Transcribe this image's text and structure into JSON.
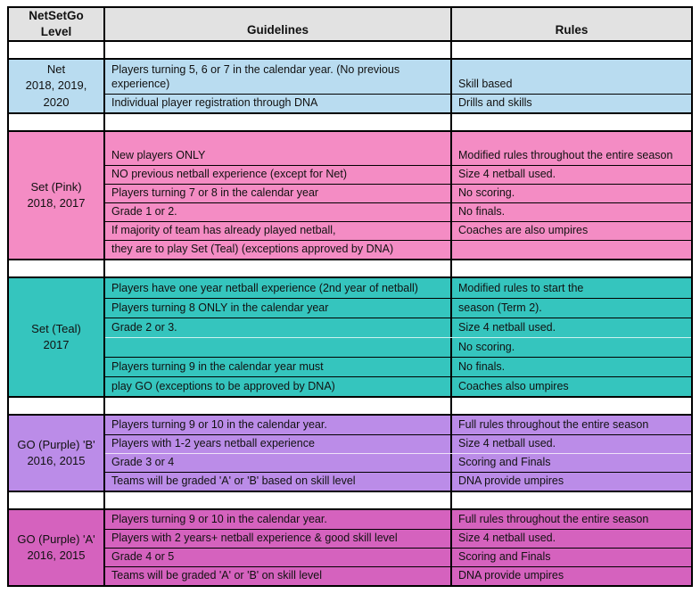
{
  "table": {
    "headers": {
      "level": "NetSetGo\nLevel",
      "guidelines": "Guidelines",
      "rules": "Rules"
    },
    "header_bg": "#E2E2E2",
    "border_color": "#000000",
    "sections": [
      {
        "name": "Net",
        "level": "Net\n2018, 2019,\n2020",
        "color": "#B9DCF0",
        "rows": [
          {
            "guideline": "Players turning 5, 6 or 7 in the calendar year. (No previous experience)",
            "rule": "Skill based"
          },
          {
            "guideline": "Individual player registration through DNA",
            "rule": "Drills and skills"
          }
        ]
      },
      {
        "name": "Set (Pink)",
        "level": "Set (Pink)\n2018, 2017",
        "color": "#F48CC4",
        "rows": [
          {
            "guideline": "New players ONLY",
            "rule": "Modified rules throughout the entire season"
          },
          {
            "guideline": "NO previous netball experience (except for Net)",
            "rule": "Size 4 netball used."
          },
          {
            "guideline": "Players turning 7 or 8 in the calendar year",
            "rule": "No scoring."
          },
          {
            "guideline": "Grade 1 or 2.",
            "rule": "No finals."
          },
          {
            "guideline": "If majority of team has already played netball,",
            "rule": "Coaches are also umpires"
          },
          {
            "guideline": "they are to play Set (Teal) (exceptions approved by DNA)",
            "rule": ""
          }
        ]
      },
      {
        "name": "Set (Teal)",
        "level": "Set (Teal)\n2017",
        "color": "#35C5BE",
        "rows": [
          {
            "guideline": "Players have one year netball experience (2nd year of netball)",
            "rule": "Modified rules to start the"
          },
          {
            "guideline": "Players turning 8 ONLY in the calendar year",
            "rule": "season (Term 2)."
          },
          {
            "guideline": "Grade 2 or 3.",
            "rule": "Size 4 netball used."
          },
          {
            "guideline": "",
            "rule": "No scoring."
          },
          {
            "guideline": "Players turning 9 in the calendar year must",
            "rule": "No finals."
          },
          {
            "guideline": "play GO (exceptions to be approved by DNA)",
            "rule": "Coaches also umpires"
          }
        ]
      },
      {
        "name": "GO (Purple) 'B'",
        "level": "GO (Purple) 'B'\n2016, 2015",
        "color": "#BB8CE8",
        "rows": [
          {
            "guideline": "Players turning 9 or 10 in the calendar year.",
            "rule": "Full rules throughout the entire season"
          },
          {
            "guideline": "Players with 1-2 years netball experience",
            "rule": "Size 4 netball used."
          },
          {
            "guideline": "Grade 3 or 4",
            "rule": "Scoring and Finals"
          },
          {
            "guideline": "Teams will be graded 'A' or 'B' based on skill level",
            "rule": "DNA provide umpires"
          }
        ]
      },
      {
        "name": "GO (Purple) 'A'",
        "level": "GO (Purple) 'A'\n2016, 2015",
        "color": "#D562BE",
        "rows": [
          {
            "guideline": "Players turning 9 or 10 in the calendar year.",
            "rule": "Full rules throughout the entire season"
          },
          {
            "guideline": "Players with 2 years+ netball experience & good skill level",
            "rule": "Size 4 netball used."
          },
          {
            "guideline": "Grade 4 or 5",
            "rule": "Scoring and Finals"
          },
          {
            "guideline": "Teams will be graded 'A' or 'B' on skill level",
            "rule": "DNA provide umpires"
          }
        ]
      }
    ]
  }
}
